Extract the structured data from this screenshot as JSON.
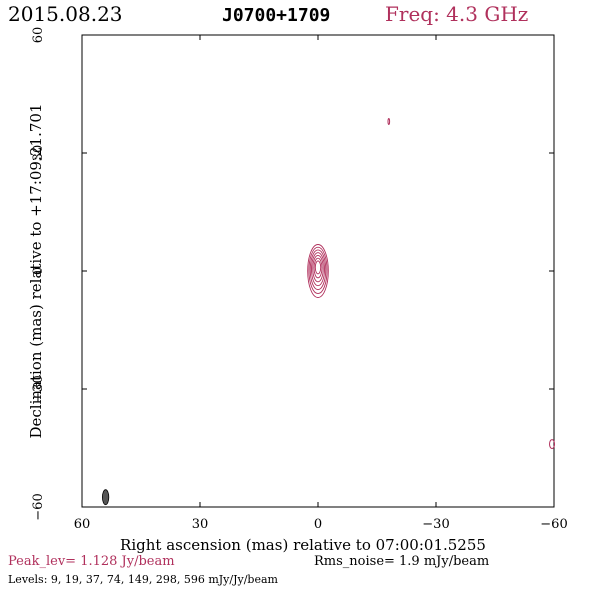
{
  "header": {
    "date": "2015.08.23",
    "source": "J0700+1709",
    "frequency": "Freq: 4.3 GHz"
  },
  "footer": {
    "peak_level": "Peak_lev=  1.128 Jy/beam",
    "rms_noise": "Rms_noise=  1.9 mJy/beam",
    "levels": "Levels:  9,  19,  37,  74, 149, 298, 596 mJy/Jy/beam"
  },
  "colors": {
    "contour": "#b0305c",
    "beam": "#555555",
    "axis": "#000000"
  },
  "chart_data": {
    "type": "contour",
    "xlabel": "Right ascension (mas) relative to 07:00:01.5255",
    "ylabel": "Declination (mas) relative to +17:09:21.701",
    "xlim": [
      60,
      -60
    ],
    "ylim": [
      -60,
      60
    ],
    "x_ticks": [
      60,
      30,
      0,
      -30,
      -60
    ],
    "y_ticks": [
      -60,
      -30,
      0,
      30,
      60
    ],
    "x_tick_labels": [
      "60",
      "30",
      "0",
      "−30",
      "−60"
    ],
    "y_tick_labels": [
      "−60",
      "−30",
      "0",
      "30",
      "60"
    ],
    "contour_levels_mJy": [
      9,
      19,
      37,
      74,
      149,
      298,
      596
    ],
    "core": {
      "x": 0,
      "y": 0
    },
    "components": [
      {
        "x": -18,
        "y": 38
      },
      {
        "x": -59.5,
        "y": -44
      }
    ],
    "beam": {
      "x": 54,
      "y": -57
    }
  }
}
